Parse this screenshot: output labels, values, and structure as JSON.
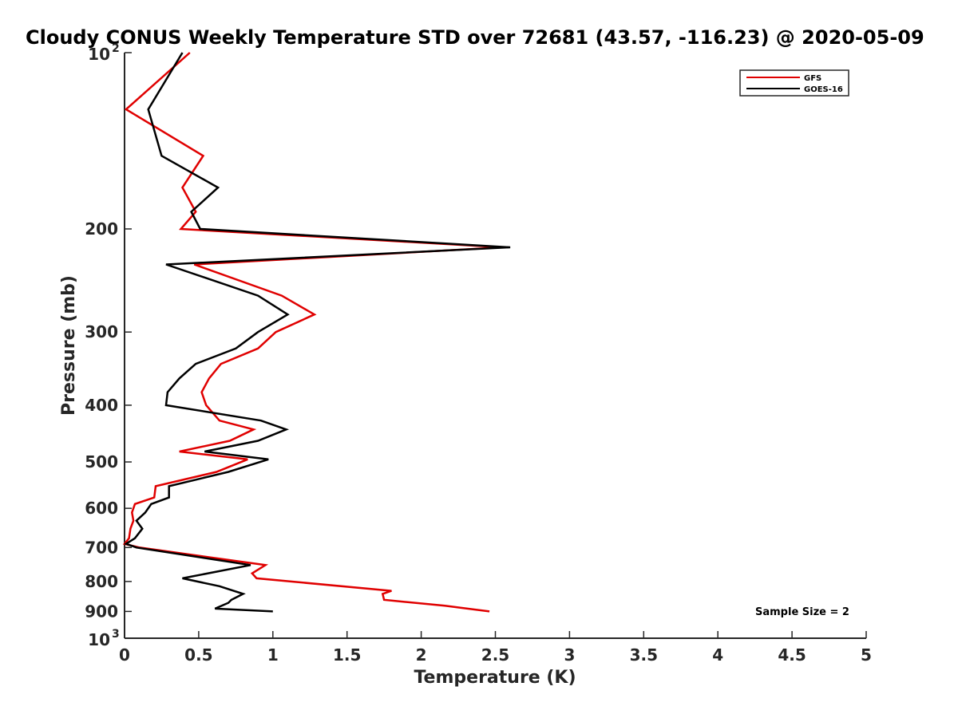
{
  "chart_data": {
    "type": "line",
    "title": "Cloudy CONUS Weekly Temperature STD over 72681 (43.57, -116.23) @ 2020-05-09",
    "xlabel": "Temperature (K)",
    "ylabel": "Pressure (mb)",
    "xlim": [
      0,
      5
    ],
    "ylim": [
      100,
      1000
    ],
    "y_scale": "log",
    "y_reversed": true,
    "x_ticks": [
      "0",
      "0.5",
      "1",
      "1.5",
      "2",
      "2.5",
      "3",
      "3.5",
      "4",
      "4.5",
      "5"
    ],
    "y_ticks": [
      {
        "value": 100,
        "base": "10",
        "exp": "2"
      },
      {
        "value": 200,
        "label": "200"
      },
      {
        "value": 300,
        "label": "300"
      },
      {
        "value": 400,
        "label": "400"
      },
      {
        "value": 500,
        "label": "500"
      },
      {
        "value": 600,
        "label": "600"
      },
      {
        "value": 700,
        "label": "700"
      },
      {
        "value": 800,
        "label": "800"
      },
      {
        "value": 900,
        "label": "900"
      },
      {
        "value": 1000,
        "base": "10",
        "exp": "3"
      }
    ],
    "legend_position": "top-right",
    "annotation": "Sample Size = 2",
    "series": [
      {
        "name": "GFS",
        "color": "#e00000",
        "points": [
          [
            0.44,
            100
          ],
          [
            0.01,
            125
          ],
          [
            0.53,
            150
          ],
          [
            0.39,
            170
          ],
          [
            0.48,
            187
          ],
          [
            0.38,
            200
          ],
          [
            2.55,
            215
          ],
          [
            0.47,
            230
          ],
          [
            1.06,
            260
          ],
          [
            1.28,
            280
          ],
          [
            1.02,
            300
          ],
          [
            0.9,
            320
          ],
          [
            0.65,
            340
          ],
          [
            0.57,
            360
          ],
          [
            0.52,
            380
          ],
          [
            0.55,
            400
          ],
          [
            0.64,
            425
          ],
          [
            0.87,
            440
          ],
          [
            0.71,
            460
          ],
          [
            0.37,
            480
          ],
          [
            0.83,
            495
          ],
          [
            0.62,
            520
          ],
          [
            0.21,
            550
          ],
          [
            0.2,
            575
          ],
          [
            0.07,
            590
          ],
          [
            0.05,
            610
          ],
          [
            0.06,
            630
          ],
          [
            0.04,
            650
          ],
          [
            0.03,
            675
          ],
          [
            0.0,
            690
          ],
          [
            0.1,
            700
          ],
          [
            0.95,
            750
          ],
          [
            0.86,
            775
          ],
          [
            0.89,
            790
          ],
          [
            1.8,
            830
          ],
          [
            1.74,
            840
          ],
          [
            1.75,
            860
          ],
          [
            2.16,
            880
          ],
          [
            2.46,
            900
          ]
        ]
      },
      {
        "name": "GOES-16",
        "color": "#000000",
        "points": [
          [
            0.39,
            100
          ],
          [
            0.16,
            125
          ],
          [
            0.25,
            150
          ],
          [
            0.63,
            170
          ],
          [
            0.45,
            187
          ],
          [
            0.51,
            200
          ],
          [
            2.6,
            215
          ],
          [
            0.28,
            230
          ],
          [
            0.9,
            260
          ],
          [
            1.1,
            280
          ],
          [
            0.9,
            300
          ],
          [
            0.75,
            320
          ],
          [
            0.48,
            340
          ],
          [
            0.37,
            360
          ],
          [
            0.29,
            380
          ],
          [
            0.28,
            400
          ],
          [
            0.92,
            425
          ],
          [
            1.09,
            440
          ],
          [
            0.9,
            460
          ],
          [
            0.54,
            480
          ],
          [
            0.97,
            495
          ],
          [
            0.7,
            520
          ],
          [
            0.3,
            550
          ],
          [
            0.3,
            575
          ],
          [
            0.18,
            590
          ],
          [
            0.14,
            610
          ],
          [
            0.08,
            630
          ],
          [
            0.12,
            650
          ],
          [
            0.07,
            675
          ],
          [
            0.01,
            690
          ],
          [
            0.08,
            700
          ],
          [
            0.85,
            750
          ],
          [
            0.39,
            790
          ],
          [
            0.64,
            815
          ],
          [
            0.8,
            840
          ],
          [
            0.72,
            860
          ],
          [
            0.7,
            870
          ],
          [
            0.61,
            890
          ],
          [
            1.0,
            900
          ]
        ]
      }
    ]
  }
}
